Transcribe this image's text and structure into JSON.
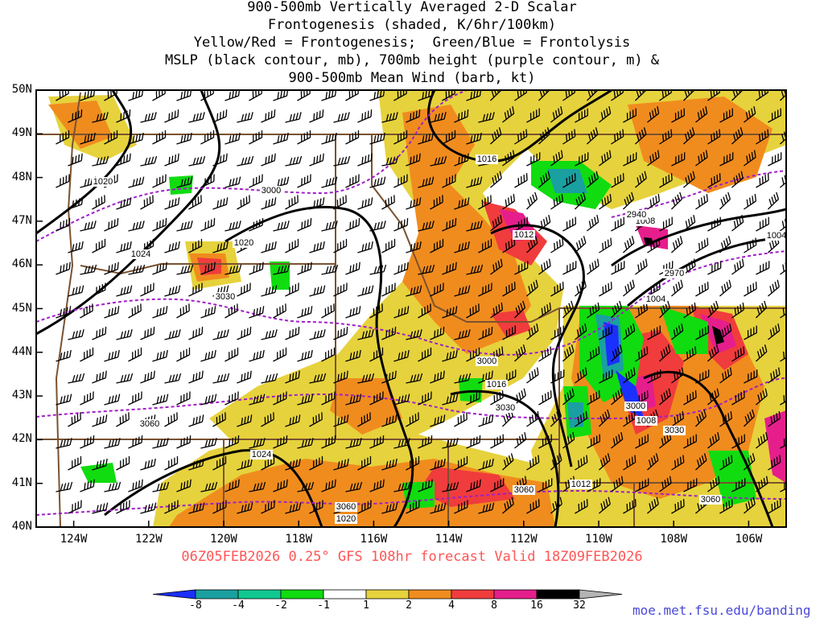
{
  "title": {
    "line1": "900-500mb Vertically Averaged 2-D Scalar",
    "line2": "Frontogenesis (shaded, K/6hr/100km)",
    "line3": "Yellow/Red = Frontogenesis;  Green/Blue = Frontolysis",
    "line4": "MSLP (black contour, mb), 700mb height (purple contour, m) &",
    "line5": "900-500mb Mean Wind (barb, kt)"
  },
  "run_label": "06Z05FEB2026 0.25° GFS 108hr forecast Valid 18Z09FEB2026",
  "credit": "moe.met.fsu.edu/banding",
  "map": {
    "lat_labels": [
      "50N",
      "49N",
      "48N",
      "47N",
      "46N",
      "45N",
      "44N",
      "43N",
      "42N",
      "41N",
      "40N"
    ],
    "lon_labels": [
      "124W",
      "122W",
      "120W",
      "118W",
      "116W",
      "114W",
      "112W",
      "110W",
      "108W",
      "106W"
    ],
    "mslp_labels": [
      "1016",
      "1020",
      "1020",
      "1024",
      "1012",
      "1008",
      "1004",
      "1004",
      "1016",
      "1008",
      "1012",
      "1024",
      "1020"
    ],
    "height_labels": [
      "3000",
      "2940",
      "2970",
      "3030",
      "3000",
      "3030",
      "3060",
      "3000",
      "3030",
      "3060",
      "3060",
      "3060"
    ],
    "colors": {
      "mslp": "#000000",
      "height": "#a020c8",
      "border": "#7a5230",
      "barb": "#000000"
    }
  },
  "colorbar": {
    "labels": [
      "-8",
      "-4",
      "-2",
      "-1",
      "1",
      "2",
      "4",
      "8",
      "16",
      "32"
    ],
    "colors": [
      "#1a30ff",
      "#1aa0a0",
      "#10c890",
      "#10dc10",
      "#ffffff",
      "#e6d23c",
      "#f08c1e",
      "#f03c3c",
      "#e61e8c",
      "#000000",
      "#b4b4b4"
    ]
  }
}
